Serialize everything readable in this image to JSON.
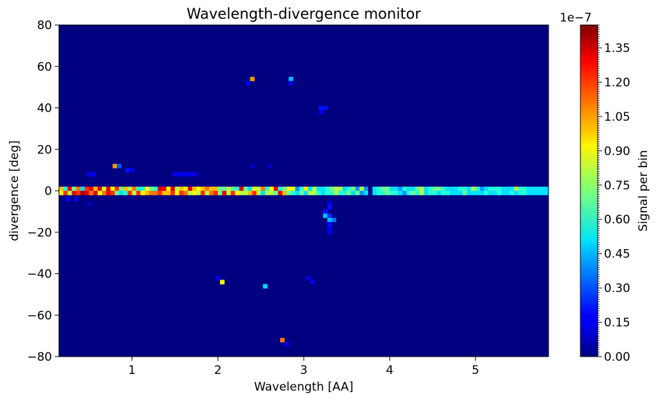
{
  "chart_data": {
    "type": "heatmap",
    "title": "Wavelength-divergence monitor",
    "xlabel": "Wavelength [AA]",
    "ylabel": "divergence [deg]",
    "xlim": [
      0.15,
      5.85
    ],
    "ylim": [
      -80,
      80
    ],
    "x_ticks": [
      1,
      2,
      3,
      4,
      5
    ],
    "y_ticks": [
      80,
      60,
      40,
      20,
      0,
      -20,
      -40,
      -60,
      -80
    ],
    "colorbar": {
      "label": "Signal per bin",
      "exponent_label": "1e−7",
      "colormap": "jet",
      "range": [
        0,
        1.45
      ],
      "ticks": [
        "0.00",
        "0.15",
        "0.30",
        "0.45",
        "0.60",
        "0.75",
        "0.90",
        "1.05",
        "1.20",
        "1.35"
      ]
    },
    "background_value": 0,
    "bin_size": {
      "wavelength": 0.05,
      "divergence": 2
    },
    "band": {
      "divergence_rows": [
        1,
        -1
      ],
      "wavelength_start": 0.175,
      "top_row_values": [
        1.0,
        0.6,
        1.3,
        0.7,
        1.1,
        0.5,
        1.2,
        1.3,
        1.0,
        1.3,
        0.8,
        1.3,
        0.9,
        1.2,
        0.7,
        1.0,
        0.8,
        1.1,
        0.6,
        0.6,
        0.9,
        0.7,
        0.6,
        1.3,
        1.3,
        0.9,
        1.3,
        0.8,
        1.0,
        0.9,
        1.3,
        1.0,
        0.9,
        1.0,
        1.1,
        1.0,
        1.0,
        0.7,
        0.7,
        0.8,
        0.7,
        0.6,
        1.3,
        0.7,
        0.5,
        0.9,
        0.8,
        1.1,
        0.6,
        0.9,
        1.3,
        0.6,
        0.7,
        0.9,
        0.9,
        0.4,
        0.6,
        0.9,
        0.5,
        0.8,
        0.5,
        0.5,
        0.6,
        0.7,
        0.8,
        0.8,
        0.5,
        0.6,
        0.7,
        0.4,
        0.8,
        0.4,
        0.0,
        0.5,
        0.6,
        0.7,
        0.7,
        0.5,
        0.5,
        0.4,
        0.6,
        0.5,
        0.5,
        0.7,
        0.8,
        0.5,
        0.6,
        0.7,
        0.7,
        0.6,
        0.5,
        0.5,
        0.5,
        0.6,
        0.6,
        0.5,
        0.8,
        0.6,
        0.4,
        0.5,
        0.6,
        0.6,
        0.6,
        0.5,
        0.5,
        0.5,
        0.8,
        0.6,
        0.6,
        0.5,
        0.5,
        0.5,
        0.5,
        0.5
      ],
      "bottom_row_values": [
        0.9,
        1.2,
        0.8,
        1.3,
        1.2,
        1.4,
        1.3,
        1.1,
        1.3,
        0.9,
        1.1,
        1.3,
        1.2,
        0.7,
        0.5,
        0.6,
        1.2,
        0.8,
        1.2,
        0.9,
        1.0,
        1.1,
        1.1,
        1.2,
        1.0,
        1.0,
        1.2,
        0.9,
        1.2,
        1.1,
        0.8,
        0.9,
        0.8,
        1.2,
        0.8,
        1.1,
        1.2,
        0.7,
        1.3,
        0.8,
        1.2,
        0.9,
        0.8,
        0.8,
        1.0,
        1.2,
        0.8,
        0.5,
        0.8,
        0.8,
        0.7,
        1.3,
        1.0,
        0.7,
        0.6,
        0.5,
        0.7,
        0.5,
        0.8,
        0.8,
        0.6,
        0.5,
        0.6,
        0.6,
        0.8,
        0.6,
        0.6,
        0.7,
        0.5,
        0.7,
        0.4,
        0.5,
        0.0,
        0.5,
        0.6,
        0.6,
        0.7,
        0.6,
        0.6,
        0.5,
        0.4,
        0.6,
        0.7,
        0.6,
        0.8,
        0.5,
        0.6,
        0.6,
        0.5,
        0.6,
        0.6,
        0.5,
        0.5,
        0.5,
        0.7,
        0.5,
        0.5,
        0.5,
        0.5,
        0.6,
        0.5,
        0.5,
        0.6,
        0.5,
        0.5,
        0.6,
        0.5,
        0.6,
        0.6,
        0.5,
        0.5,
        0.5,
        0.5,
        0.5
      ]
    },
    "cells": [
      {
        "x": 2.4,
        "y": 54,
        "v": 1.05
      },
      {
        "x": 2.35,
        "y": 52,
        "v": 0.15
      },
      {
        "x": 2.85,
        "y": 54,
        "v": 0.45
      },
      {
        "x": 2.85,
        "y": 52,
        "v": 0.15
      },
      {
        "x": 3.2,
        "y": 40,
        "v": 0.2
      },
      {
        "x": 3.25,
        "y": 40,
        "v": 0.2
      },
      {
        "x": 3.2,
        "y": 38,
        "v": 0.15
      },
      {
        "x": 0.8,
        "y": 12,
        "v": 1.05
      },
      {
        "x": 0.85,
        "y": 12,
        "v": 0.3
      },
      {
        "x": 0.95,
        "y": 10,
        "v": 0.2
      },
      {
        "x": 1.0,
        "y": 10,
        "v": 0.15
      },
      {
        "x": 0.5,
        "y": 8,
        "v": 0.15
      },
      {
        "x": 0.55,
        "y": 8,
        "v": 0.15
      },
      {
        "x": 1.5,
        "y": 8,
        "v": 0.15
      },
      {
        "x": 1.55,
        "y": 8,
        "v": 0.15
      },
      {
        "x": 1.6,
        "y": 8,
        "v": 0.15
      },
      {
        "x": 1.65,
        "y": 8,
        "v": 0.15
      },
      {
        "x": 1.7,
        "y": 8,
        "v": 0.15
      },
      {
        "x": 1.75,
        "y": 8,
        "v": 0.1
      },
      {
        "x": 2.4,
        "y": 12,
        "v": 0.1
      },
      {
        "x": 2.6,
        "y": 12,
        "v": 0.1
      },
      {
        "x": 0.25,
        "y": -4,
        "v": 0.15
      },
      {
        "x": 0.35,
        "y": -4,
        "v": 0.15
      },
      {
        "x": 0.5,
        "y": -6,
        "v": 0.1
      },
      {
        "x": 3.3,
        "y": -6,
        "v": 0.15
      },
      {
        "x": 3.3,
        "y": -8,
        "v": 0.2
      },
      {
        "x": 3.25,
        "y": -10,
        "v": 0.2
      },
      {
        "x": 3.25,
        "y": -12,
        "v": 0.45
      },
      {
        "x": 3.3,
        "y": -12,
        "v": 0.25
      },
      {
        "x": 3.3,
        "y": -14,
        "v": 0.45
      },
      {
        "x": 3.35,
        "y": -14,
        "v": 0.35
      },
      {
        "x": 3.3,
        "y": -16,
        "v": 0.2
      },
      {
        "x": 3.3,
        "y": -18,
        "v": 0.15
      },
      {
        "x": 3.3,
        "y": -20,
        "v": 0.15
      },
      {
        "x": 2.0,
        "y": -42,
        "v": 0.15
      },
      {
        "x": 2.05,
        "y": -44,
        "v": 0.9
      },
      {
        "x": 2.55,
        "y": -46,
        "v": 0.5
      },
      {
        "x": 3.05,
        "y": -42,
        "v": 0.15
      },
      {
        "x": 3.1,
        "y": -44,
        "v": 0.15
      },
      {
        "x": 2.75,
        "y": -72,
        "v": 1.1
      },
      {
        "x": 2.8,
        "y": -74,
        "v": 0.15
      }
    ]
  }
}
